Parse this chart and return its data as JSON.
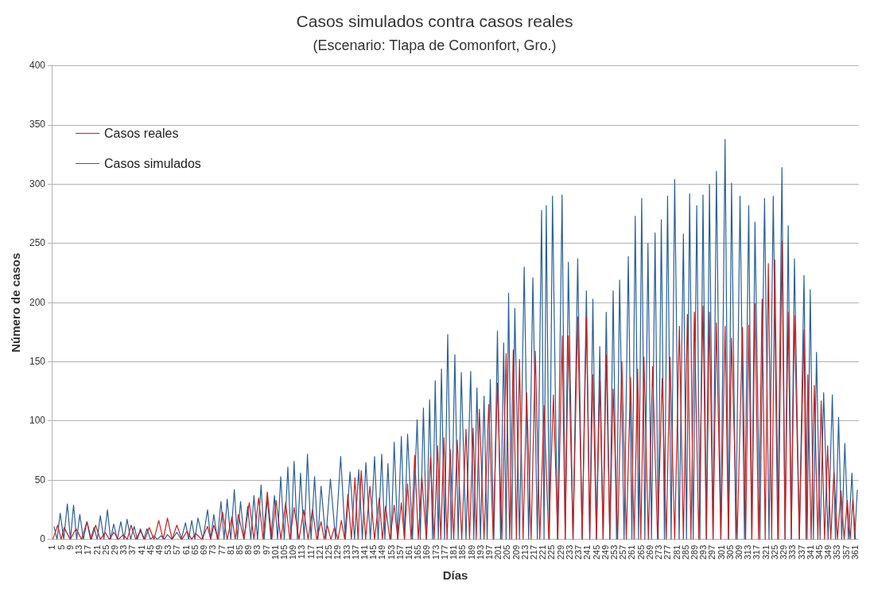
{
  "chart_data": {
    "type": "line",
    "title": "Casos simulados contra casos reales",
    "subtitle": "(Escenario: Tlapa de Comonfort, Gro.)",
    "xlabel": "Días",
    "ylabel": "Número de casos",
    "xlim": [
      0.5,
      362.5
    ],
    "xticks": [
      1,
      5,
      9,
      13,
      17,
      21,
      25,
      29,
      33,
      37,
      41,
      45,
      49,
      53,
      57,
      61,
      65,
      69,
      73,
      77,
      81,
      85,
      89,
      93,
      97,
      101,
      105,
      109,
      113,
      117,
      121,
      125,
      129,
      133,
      137,
      141,
      145,
      149,
      153,
      157,
      161,
      165,
      169,
      173,
      177,
      181,
      185,
      189,
      193,
      197,
      201,
      205,
      209,
      213,
      217,
      221,
      225,
      229,
      233,
      237,
      241,
      245,
      249,
      253,
      257,
      261,
      265,
      269,
      273,
      277,
      281,
      285,
      289,
      293,
      297,
      301,
      305,
      309,
      313,
      317,
      321,
      325,
      329,
      333,
      337,
      341,
      345,
      349,
      353,
      357,
      361
    ],
    "ylim": [
      0,
      400
    ],
    "yticks": [
      0,
      50,
      100,
      150,
      200,
      250,
      300,
      350,
      400
    ],
    "grid": "y",
    "legend": "top left",
    "series": [
      {
        "name": "Casos reales",
        "color": "#c9211e",
        "x": [
          1,
          3.2,
          4.7,
          6.1,
          8.8,
          11.4,
          13.9,
          16.3,
          18.3,
          20.2,
          22.3,
          24.4,
          26.4,
          28.3,
          30.5,
          32.6,
          34.4,
          36.1,
          38.2,
          40.3,
          42.3,
          44.2,
          46.4,
          48.5,
          50.5,
          52.4,
          54.5,
          56.6,
          58.9,
          61.2,
          63.2,
          65.1,
          67.8,
          70.4,
          71.8,
          73.2,
          75.2,
          77.1,
          79.2,
          81.3,
          82.8,
          84.2,
          86.7,
          89.1,
          91.2,
          93.3,
          95.3,
          97.2,
          99.2,
          101.1,
          103.3,
          105.4,
          107.3,
          109.2,
          111.4,
          113.5,
          115.5,
          117.4,
          119.4,
          121.3,
          122.7,
          124.1,
          125.7,
          127.3,
          128.9,
          130.4,
          131.9,
          133.3,
          134.9,
          136.5,
          137.9,
          139.3,
          141.3,
          143.2,
          145.3,
          147.4,
          148.8,
          150.2,
          152.2,
          154.1,
          155.7,
          157.3,
          158.7,
          160.1,
          161.7,
          163.3,
          164.9,
          166.5,
          168.5,
          170.4,
          172,
          173.6,
          175,
          176.4,
          177.8,
          179.2,
          180.8,
          182.4,
          184.4,
          186.3,
          187.9,
          189.5,
          190.9,
          192.3,
          194.4,
          196.5,
          198.5,
          200.4,
          202.4,
          204.3,
          205.9,
          207.5,
          208.9,
          210.3,
          211.9,
          213.5,
          215.5,
          217.4,
          219.4,
          221.3,
          223.4,
          225.5,
          227.5,
          229.4,
          230.8,
          232.2,
          234.3,
          236.4,
          238.4,
          240.3,
          241.8,
          243.2,
          244.8,
          246.3,
          247.8,
          249.2,
          250.8,
          252.3,
          254.3,
          256.2,
          258.2,
          260.1,
          261.7,
          263.3,
          264.7,
          266.1,
          268.1,
          270,
          272.2,
          274.3,
          276.1,
          277.8,
          279.9,
          282,
          283.8,
          285.6,
          287.2,
          288.7,
          290.7,
          292.6,
          294.1,
          295.5,
          297.1,
          298.6,
          300.6,
          302.5,
          304,
          305.4,
          307.9,
          310.3,
          311.7,
          313.1,
          314.5,
          315.9,
          317.5,
          319.1,
          320.5,
          321.9,
          323.4,
          324.8,
          326.4,
          328,
          329.4,
          330.8,
          332.2,
          333.6,
          335.8,
          337.9,
          338.8,
          339.6,
          341.1,
          342.5,
          344.1,
          345.6,
          347.1,
          348.5,
          349.9,
          351.3,
          352.9,
          354.5,
          355.9,
          357.3,
          358.6,
          359.8,
          361
        ],
        "values": [
          0,
          12,
          0,
          10,
          0,
          9,
          0,
          15,
          0,
          12,
          0,
          6,
          0,
          6,
          0,
          4,
          0,
          12,
          0,
          7,
          0,
          10,
          0,
          16,
          0,
          18,
          0,
          12,
          0,
          7,
          0,
          5,
          0,
          11,
          0,
          12,
          0,
          23,
          0,
          19,
          0,
          21,
          0,
          31,
          0,
          35,
          0,
          40,
          0,
          33,
          0,
          31,
          0,
          27,
          0,
          25,
          0,
          25,
          0,
          15,
          0,
          12,
          0,
          10,
          0,
          16,
          0,
          38,
          0,
          52,
          0,
          58,
          0,
          45,
          0,
          35,
          0,
          28,
          0,
          29,
          0,
          31,
          0,
          47,
          0,
          71,
          0,
          53,
          0,
          70,
          0,
          79,
          0,
          86,
          0,
          76,
          0,
          84,
          0,
          93,
          0,
          94,
          0,
          110,
          0,
          114,
          0,
          132,
          0,
          157,
          0,
          160,
          0,
          152,
          0,
          124,
          0,
          159,
          0,
          113,
          0,
          122,
          0,
          172,
          0,
          172,
          0,
          188,
          0,
          188,
          0,
          139,
          0,
          134,
          0,
          156,
          0,
          127,
          0,
          150,
          0,
          137,
          0,
          144,
          0,
          154,
          0,
          146,
          0,
          136,
          0,
          154,
          0,
          180,
          0,
          190,
          0,
          192,
          0,
          197,
          0,
          192,
          0,
          183,
          0,
          180,
          0,
          170,
          0,
          179,
          0,
          181,
          0,
          199,
          0,
          203,
          0,
          233,
          0,
          236,
          0,
          252,
          0,
          192,
          0,
          189,
          0,
          177,
          0,
          139,
          0,
          130,
          0,
          117,
          0,
          79,
          0,
          57,
          0,
          41,
          0,
          33,
          0,
          34,
          0
        ]
      },
      {
        "name": "Casos simulados",
        "color": "#2a6099",
        "x": [
          1.5,
          2.9,
          4.3,
          5.9,
          7.5,
          8.9,
          10.3,
          11.7,
          13.1,
          14.7,
          16.3,
          17.9,
          19.5,
          20.9,
          22.3,
          23.9,
          25.5,
          26.9,
          28.3,
          29.9,
          31.5,
          32.9,
          34.3,
          35.9,
          37.5,
          38.9,
          40.3,
          41.8,
          43.2,
          44.8,
          46.3,
          47.9,
          49.5,
          51,
          52.4,
          54.5,
          56.6,
          58.6,
          60.5,
          61.9,
          63.3,
          64.7,
          66.1,
          68.3,
          70.4,
          71.8,
          73.2,
          74.8,
          76.4,
          77.8,
          79.2,
          80.8,
          82.4,
          83.8,
          85.2,
          86.8,
          88.4,
          89.8,
          91.2,
          92.8,
          94.4,
          95.8,
          97.2,
          98.8,
          100.4,
          101.8,
          103.2,
          104.8,
          106.4,
          107.8,
          109.2,
          110.7,
          112.1,
          113.7,
          115.2,
          116.8,
          118.4,
          119.9,
          121.3,
          123.4,
          125.5,
          127.8,
          130.1,
          132.2,
          134.3,
          136.3,
          138.2,
          139.8,
          141.4,
          143.4,
          145.3,
          146.9,
          148.5,
          149.9,
          151.3,
          152.7,
          154.1,
          155.7,
          157.3,
          158.7,
          160.1,
          162.3,
          164.4,
          165.8,
          167.2,
          168.6,
          170,
          171.3,
          172.5,
          173.9,
          175.3,
          176.7,
          178.1,
          179.7,
          181.3,
          182.8,
          184.2,
          186.3,
          188.4,
          189.8,
          191.2,
          192.8,
          194.4,
          195.8,
          197.2,
          198.8,
          200.4,
          201.8,
          203.2,
          204.3,
          205.4,
          206.8,
          208.2,
          210.3,
          212.4,
          214.4,
          216.3,
          218.3,
          220.2,
          221.3,
          222.3,
          223.7,
          225.1,
          227.3,
          229.4,
          230.8,
          232.2,
          234.3,
          236.4,
          238.4,
          240.3,
          241.8,
          243.2,
          244.8,
          246.3,
          247.8,
          249.2,
          250.8,
          252.3,
          253.8,
          255.2,
          257.2,
          259.1,
          260.7,
          262.2,
          263.7,
          265.1,
          266.5,
          267.9,
          269.5,
          271.1,
          272.5,
          273.9,
          275.3,
          276.7,
          278.3,
          279.9,
          281.9,
          283.8,
          285.2,
          286.6,
          288.2,
          289.8,
          291.2,
          292.6,
          294.1,
          295.5,
          297.1,
          298.6,
          300.6,
          302.5,
          304,
          305.4,
          307.3,
          309.2,
          311.2,
          313.1,
          314.5,
          315.9,
          318.1,
          320.2,
          322.2,
          324.1,
          326.1,
          328,
          329.4,
          330.8,
          332.2,
          333.6,
          335.8,
          337.9,
          339.3,
          340.7,
          342.1,
          343.5,
          345.1,
          346.7,
          348.7,
          350.6,
          352,
          353.4,
          354.8,
          356.2,
          357.8,
          359.4,
          360.6,
          361.8
        ],
        "values": [
          11,
          0,
          22,
          0,
          30,
          0,
          29,
          0,
          21,
          0,
          15,
          0,
          10,
          0,
          20,
          0,
          25,
          0,
          13,
          0,
          15,
          0,
          17,
          0,
          11,
          0,
          9,
          0,
          9,
          0,
          3,
          0,
          3,
          0,
          4,
          0,
          6,
          0,
          14,
          0,
          16,
          0,
          18,
          0,
          25,
          0,
          21,
          0,
          32,
          0,
          34,
          0,
          42,
          0,
          32,
          0,
          28,
          0,
          37,
          0,
          46,
          0,
          35,
          0,
          37,
          0,
          53,
          0,
          61,
          0,
          66,
          0,
          56,
          0,
          72,
          0,
          53,
          0,
          45,
          0,
          51,
          0,
          70,
          0,
          57,
          0,
          59,
          0,
          65,
          0,
          70,
          0,
          72,
          0,
          64,
          0,
          82,
          0,
          87,
          0,
          89,
          0,
          101,
          0,
          111,
          0,
          118,
          0,
          134,
          0,
          144,
          0,
          173,
          0,
          156,
          0,
          141,
          0,
          142,
          0,
          128,
          0,
          121,
          0,
          135,
          0,
          176,
          0,
          166,
          0,
          208,
          0,
          195,
          0,
          230,
          0,
          221,
          0,
          278,
          0,
          282,
          0,
          290,
          0,
          291,
          0,
          234,
          0,
          237,
          0,
          210,
          0,
          203,
          0,
          163,
          0,
          192,
          0,
          210,
          0,
          219,
          0,
          239,
          0,
          273,
          0,
          288,
          0,
          250,
          0,
          259,
          0,
          270,
          0,
          290,
          0,
          304,
          0,
          258,
          0,
          292,
          0,
          282,
          0,
          291,
          0,
          300,
          0,
          311,
          0,
          338,
          0,
          301,
          0,
          290,
          0,
          282,
          0,
          268,
          0,
          288,
          0,
          290,
          0,
          314,
          0,
          265,
          0,
          237,
          0,
          223,
          0,
          211,
          0,
          158,
          0,
          124,
          0,
          122,
          0,
          103,
          0,
          81,
          0,
          56,
          0,
          42
        ]
      }
    ]
  }
}
